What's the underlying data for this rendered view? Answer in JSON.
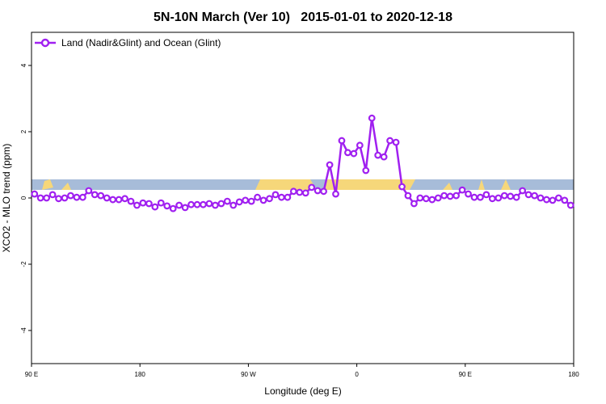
{
  "chart_data": {
    "type": "line",
    "title": "5N-10N March (Ver 10)   2015-01-01 to 2020-12-18",
    "xlabel": "Longitude (deg E)",
    "ylabel": "XCO2 - MLO trend (ppm)",
    "xlim": [
      90,
      540
    ],
    "ylim": [
      -5,
      5
    ],
    "xticks": [
      {
        "value": 90,
        "label": "90 E"
      },
      {
        "value": 180,
        "label": "180"
      },
      {
        "value": 270,
        "label": "90 W"
      },
      {
        "value": 360,
        "label": "0"
      },
      {
        "value": 450,
        "label": "90 E"
      },
      {
        "value": 540,
        "label": "180"
      }
    ],
    "yticks": [
      -4,
      -2,
      0,
      2,
      4
    ],
    "legend": "top-left",
    "series": [
      {
        "name": "Land (Nadir&Glint) and Ocean (Glint)",
        "color": "#a020f0",
        "x": [
          92.5,
          97.5,
          102.5,
          107.5,
          112.5,
          117.5,
          122.5,
          127.5,
          132.5,
          137.5,
          142.5,
          147.5,
          152.5,
          157.5,
          162.5,
          167.5,
          172.5,
          177.5,
          182.5,
          187.5,
          192.5,
          197.5,
          202.5,
          207.5,
          212.5,
          217.5,
          222.5,
          227.5,
          232.5,
          237.5,
          242.5,
          247.5,
          252.5,
          257.5,
          262.5,
          267.5,
          272.5,
          277.5,
          282.5,
          287.5,
          292.5,
          297.5,
          302.5,
          307.5,
          312.5,
          317.5,
          322.5,
          327.5,
          332.5,
          337.5,
          342.5,
          347.5,
          352.5,
          357.5,
          362.5,
          367.5,
          372.5,
          377.5,
          382.5,
          387.5,
          392.5,
          397.5,
          402.5,
          407.5,
          412.5,
          417.5,
          422.5,
          427.5,
          432.5,
          437.5,
          442.5,
          447.5,
          452.5,
          457.5,
          462.5,
          467.5,
          472.5,
          477.5,
          482.5,
          487.5,
          492.5,
          497.5,
          502.5,
          507.5,
          512.5,
          517.5,
          522.5,
          527.5,
          532.5,
          537.5
        ],
        "values": [
          0.12,
          0,
          0,
          0.1,
          -0.02,
          0,
          0.07,
          0.02,
          0.02,
          0.22,
          0.1,
          0.07,
          0,
          -0.05,
          -0.05,
          -0.02,
          -0.1,
          -0.22,
          -0.15,
          -0.17,
          -0.27,
          -0.15,
          -0.24,
          -0.32,
          -0.22,
          -0.29,
          -0.2,
          -0.2,
          -0.2,
          -0.17,
          -0.22,
          -0.17,
          -0.1,
          -0.22,
          -0.12,
          -0.07,
          -0.1,
          0.02,
          -0.07,
          -0.02,
          0.1,
          0.02,
          0.02,
          0.2,
          0.17,
          0.15,
          0.32,
          0.22,
          0.2,
          1.0,
          0.12,
          1.73,
          1.37,
          1.34,
          1.59,
          0.83,
          2.41,
          1.29,
          1.24,
          1.73,
          1.68,
          0.34,
          0.07,
          -0.17,
          0,
          -0.02,
          -0.05,
          0,
          0.07,
          0.05,
          0.07,
          0.24,
          0.12,
          0.02,
          0.02,
          0.1,
          -0.02,
          0,
          0.07,
          0.05,
          0.02,
          0.22,
          0.1,
          0.07,
          0,
          -0.05,
          -0.07,
          0,
          -0.07,
          -0.22
        ]
      }
    ]
  }
}
